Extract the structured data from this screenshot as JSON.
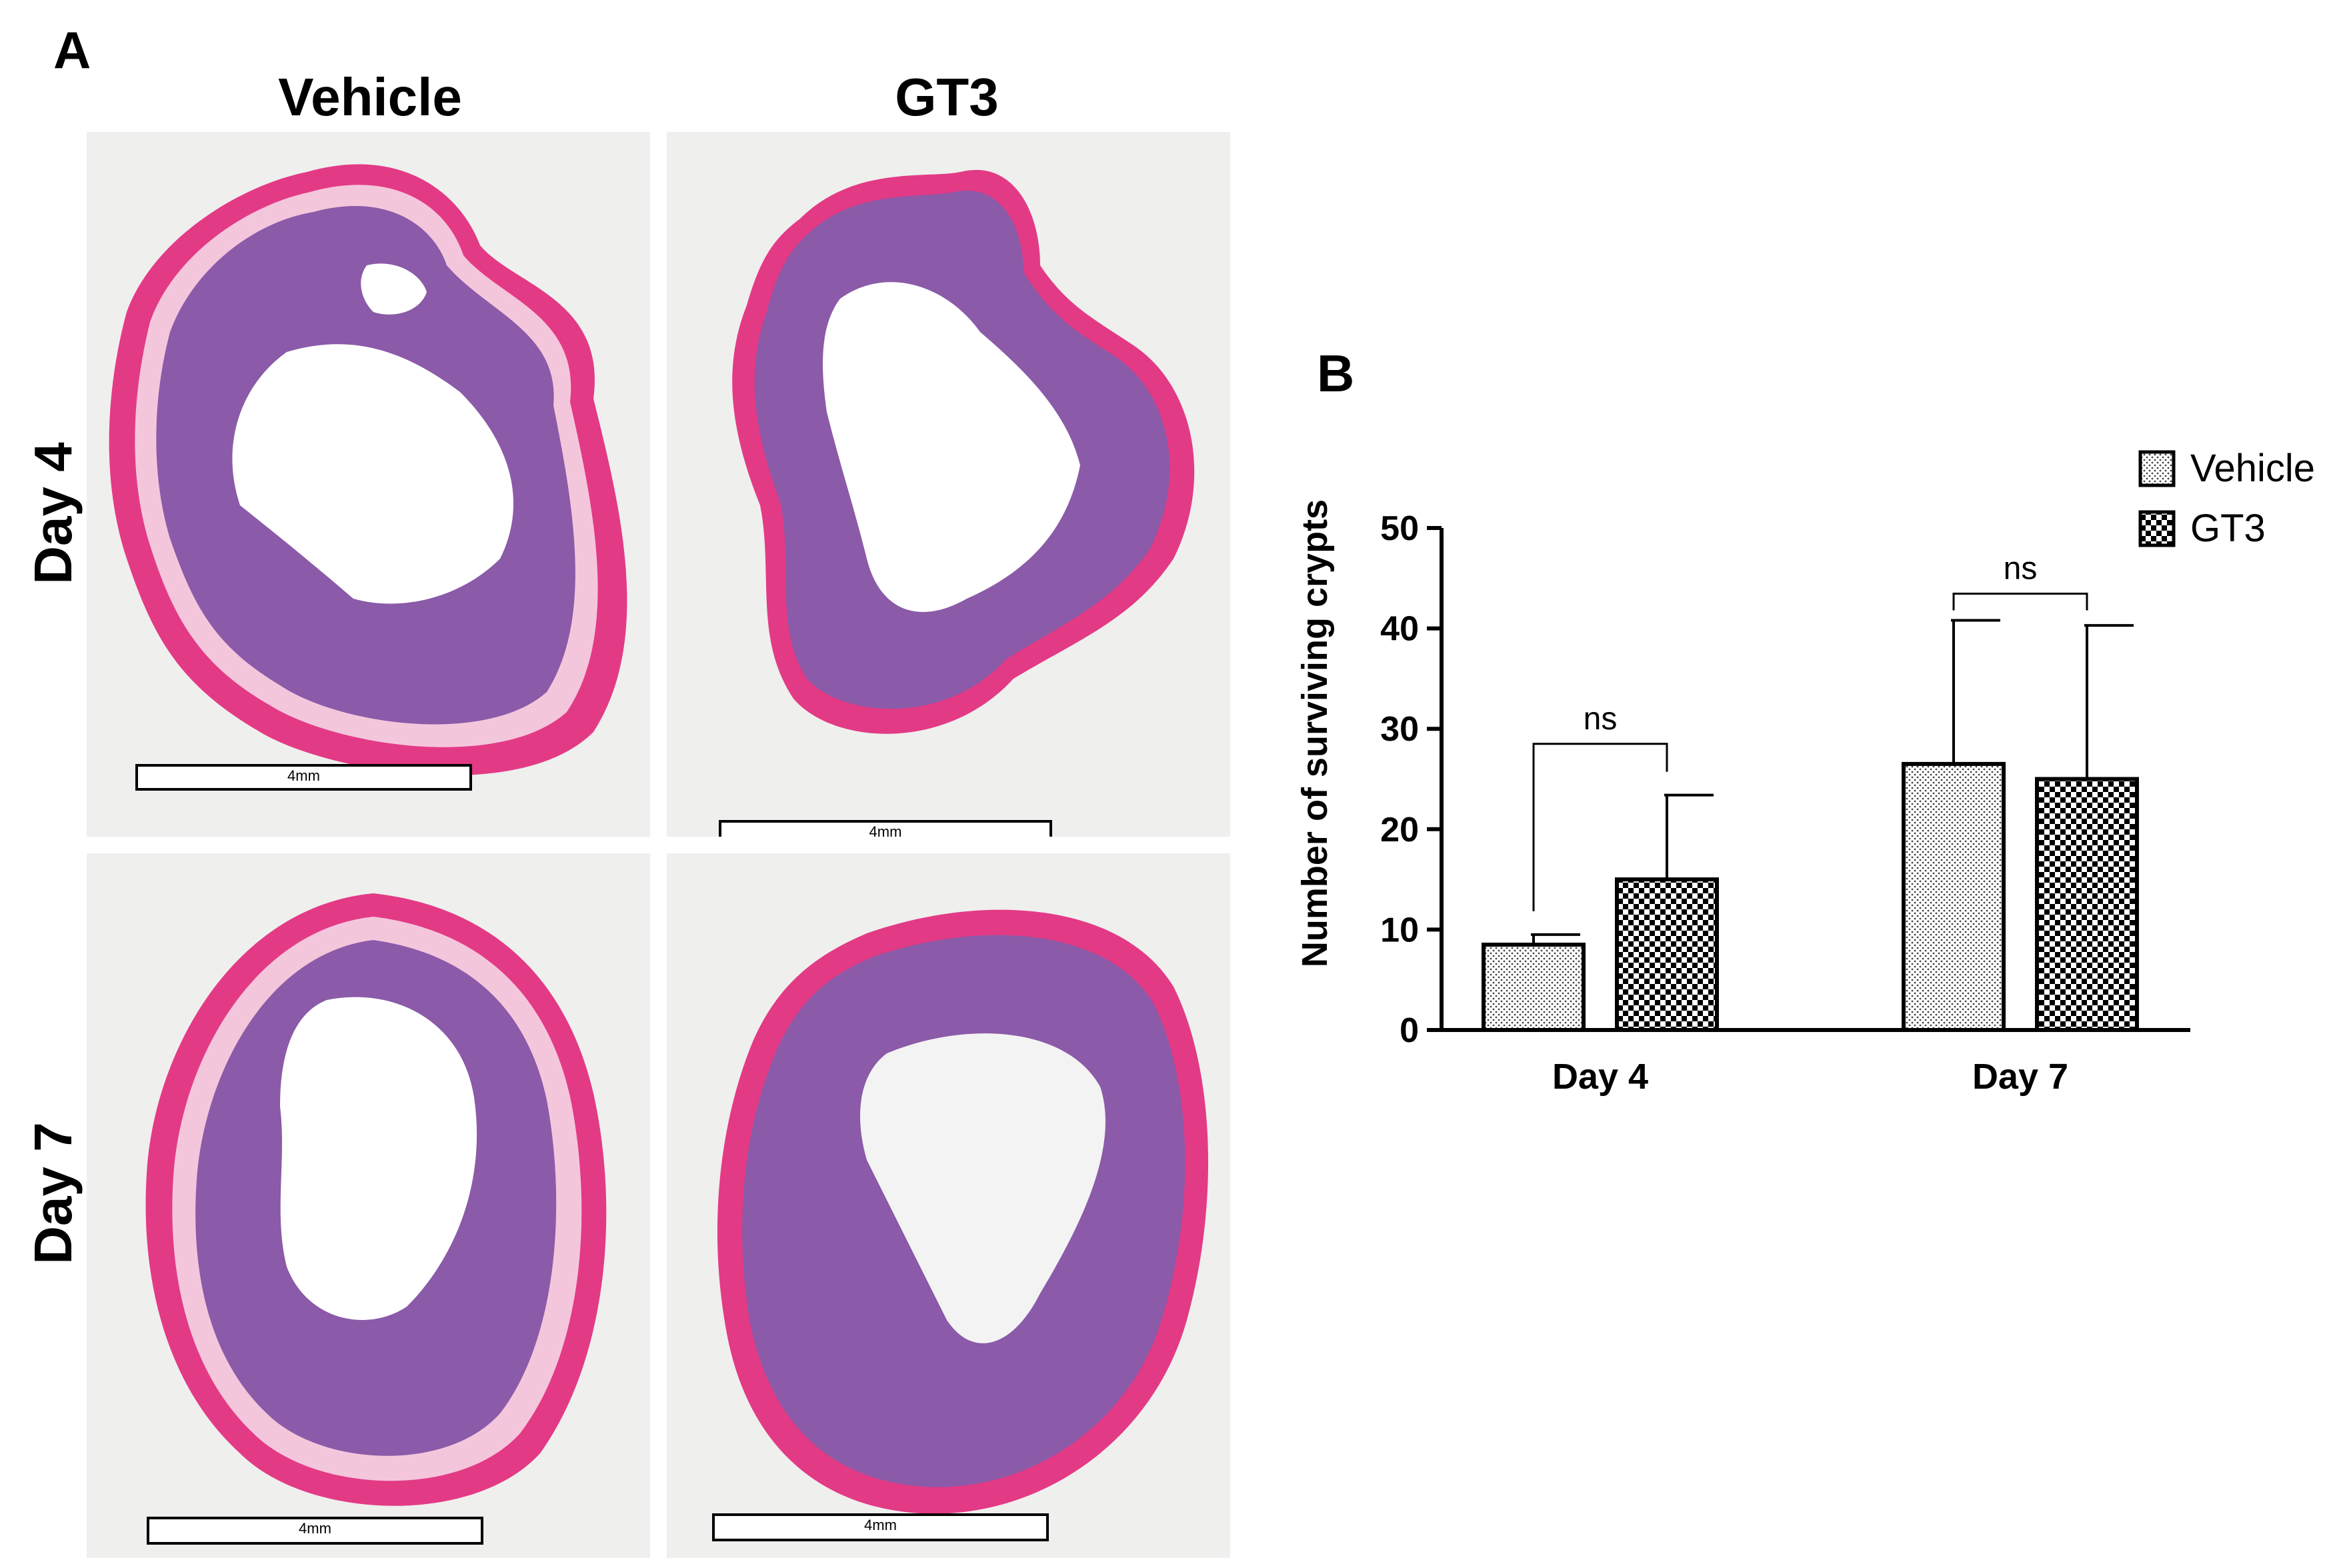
{
  "panel_a": {
    "letter": "A",
    "columns": [
      "Vehicle",
      "GT3"
    ],
    "rows": [
      "Day 4",
      "Day 7"
    ],
    "scale_bar_label": "4mm"
  },
  "panel_b": {
    "letter": "B"
  },
  "colors": {
    "tissue_pink": "#e33a86",
    "tissue_purple": "#8b5aa8",
    "background_gray": "#efefed"
  },
  "chart_data": {
    "type": "bar",
    "categories": [
      "Day 4",
      "Day 7"
    ],
    "series": [
      {
        "name": "Vehicle",
        "values": [
          8.5,
          26.5
        ],
        "error": [
          1.0,
          14.3
        ],
        "pattern": "fine-dots"
      },
      {
        "name": "GT3",
        "values": [
          15.0,
          25.0
        ],
        "error": [
          8.4,
          15.3
        ],
        "pattern": "checker"
      }
    ],
    "ylabel": "Number of surviving crypts",
    "xlabel": "",
    "ylim": [
      0,
      50
    ],
    "yticks": [
      0,
      10,
      20,
      30,
      40,
      50
    ],
    "significance": [
      {
        "category": "Day 4",
        "label": "ns"
      },
      {
        "category": "Day 7",
        "label": "ns"
      }
    ],
    "legend_position": "top-right",
    "grid": false
  }
}
